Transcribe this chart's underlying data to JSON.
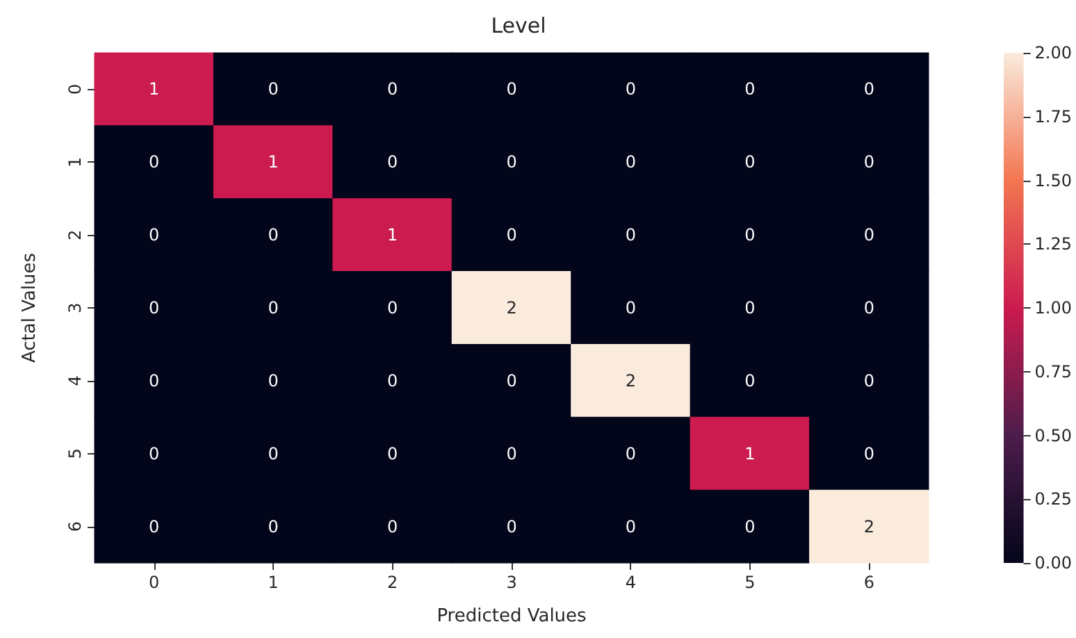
{
  "chart_data": {
    "type": "heatmap",
    "title": "Level",
    "xlabel": "Predicted Values",
    "ylabel": "Actal Values",
    "categories": [
      "0",
      "1",
      "2",
      "3",
      "4",
      "5",
      "6"
    ],
    "y_categories": [
      "0",
      "1",
      "2",
      "3",
      "4",
      "5",
      "6"
    ],
    "cells": [
      [
        1,
        0,
        0,
        0,
        0,
        0,
        0
      ],
      [
        0,
        1,
        0,
        0,
        0,
        0,
        0
      ],
      [
        0,
        0,
        1,
        0,
        0,
        0,
        0
      ],
      [
        0,
        0,
        0,
        2,
        0,
        0,
        0
      ],
      [
        0,
        0,
        0,
        0,
        2,
        0,
        0
      ],
      [
        0,
        0,
        0,
        0,
        0,
        1,
        0
      ],
      [
        0,
        0,
        0,
        0,
        0,
        0,
        2
      ]
    ],
    "data_labels": true,
    "clim": [
      0,
      2
    ],
    "cticks": [
      {
        "value": 0,
        "label": "0.00"
      },
      {
        "value": 0.25,
        "label": "0.25"
      },
      {
        "value": 0.5,
        "label": "0.50"
      },
      {
        "value": 0.75,
        "label": "0.75"
      },
      {
        "value": 1,
        "label": "1.00"
      },
      {
        "value": 1.25,
        "label": "1.25"
      },
      {
        "value": 1.5,
        "label": "1.50"
      },
      {
        "value": 1.75,
        "label": "1.75"
      },
      {
        "value": 2,
        "label": "2.00"
      }
    ]
  }
}
